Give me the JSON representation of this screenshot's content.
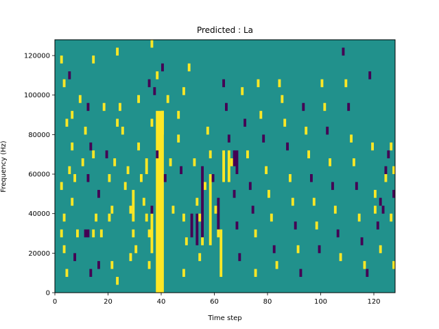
{
  "chart_data": {
    "type": "heatmap",
    "title": "Predicted : La",
    "xlabel": "Time step",
    "ylabel": "Frequency (Hz)",
    "xlim": [
      0,
      128
    ],
    "ylim": [
      0,
      128000
    ],
    "x_ticks": [
      0,
      20,
      40,
      60,
      80,
      100,
      120
    ],
    "y_ticks": [
      0,
      20000,
      40000,
      60000,
      80000,
      100000,
      120000
    ],
    "grid": false,
    "colormap": "viridis",
    "colors": {
      "background": "#21918c",
      "high": "#fde725",
      "low": "#440154"
    },
    "value_levels": {
      "low": -1,
      "mid": 0,
      "high": 1
    },
    "cell": {
      "time_steps": 1,
      "freq_bin_hz": 4000
    },
    "cells": [
      [
        2,
        116000,
        1
      ],
      [
        3,
        104000,
        1
      ],
      [
        5,
        108000,
        -1
      ],
      [
        4,
        84000,
        1
      ],
      [
        2,
        52000,
        1
      ],
      [
        3,
        36000,
        1
      ],
      [
        2,
        28000,
        1
      ],
      [
        3,
        20000,
        1
      ],
      [
        4,
        8000,
        1
      ],
      [
        6,
        88000,
        1
      ],
      [
        6,
        72000,
        1
      ],
      [
        5,
        60000,
        1
      ],
      [
        7,
        56000,
        1
      ],
      [
        6,
        44000,
        1
      ],
      [
        8,
        28000,
        1
      ],
      [
        7,
        16000,
        -1
      ],
      [
        9,
        96000,
        1
      ],
      [
        10,
        64000,
        1
      ],
      [
        11,
        80000,
        1
      ],
      [
        12,
        92000,
        -1
      ],
      [
        13,
        72000,
        -1
      ],
      [
        12,
        56000,
        -1
      ],
      [
        11,
        28000,
        -1
      ],
      [
        12,
        28000,
        -1
      ],
      [
        14,
        28000,
        1
      ],
      [
        13,
        8000,
        -1
      ],
      [
        14,
        116000,
        1
      ],
      [
        14,
        68000,
        1
      ],
      [
        15,
        36000,
        1
      ],
      [
        16,
        48000,
        -1
      ],
      [
        17,
        28000,
        1
      ],
      [
        16,
        12000,
        -1
      ],
      [
        18,
        92000,
        1
      ],
      [
        19,
        68000,
        -1
      ],
      [
        20,
        56000,
        1
      ],
      [
        20,
        36000,
        1
      ],
      [
        21,
        40000,
        1
      ],
      [
        21,
        12000,
        1
      ],
      [
        23,
        120000,
        1
      ],
      [
        23,
        4000,
        1
      ],
      [
        22,
        64000,
        1
      ],
      [
        23,
        84000,
        1
      ],
      [
        24,
        92000,
        1
      ],
      [
        25,
        80000,
        1
      ],
      [
        26,
        52000,
        1
      ],
      [
        27,
        60000,
        1
      ],
      [
        28,
        40000,
        1
      ],
      [
        29,
        28000,
        1
      ],
      [
        28,
        16000,
        1
      ],
      [
        30,
        20000,
        1
      ],
      [
        31,
        96000,
        1
      ],
      [
        31,
        72000,
        1
      ],
      [
        32,
        56000,
        1
      ],
      [
        33,
        44000,
        1
      ],
      [
        34,
        36000,
        1
      ],
      [
        35,
        28000,
        1
      ],
      [
        35,
        12000,
        1
      ],
      [
        35,
        104000,
        -1
      ],
      [
        36,
        124000,
        1
      ],
      [
        36,
        84000,
        1
      ],
      [
        36,
        40000,
        -1
      ],
      [
        37,
        100000,
        -1
      ],
      [
        38,
        108000,
        1
      ],
      [
        38,
        68000,
        -1
      ],
      [
        40,
        112000,
        -1
      ],
      [
        40,
        88000,
        1
      ],
      [
        42,
        96000,
        1
      ],
      [
        41,
        56000,
        -1
      ],
      [
        43,
        64000,
        1
      ],
      [
        44,
        40000,
        1
      ],
      [
        46,
        88000,
        1
      ],
      [
        46,
        76000,
        1
      ],
      [
        47,
        60000,
        -1
      ],
      [
        48,
        100000,
        1
      ],
      [
        48,
        36000,
        1
      ],
      [
        49,
        24000,
        1
      ],
      [
        48,
        8000,
        1
      ],
      [
        50,
        112000,
        1
      ],
      [
        52,
        64000,
        1
      ],
      [
        53,
        44000,
        1
      ],
      [
        54,
        36000,
        1
      ],
      [
        54,
        16000,
        1
      ],
      [
        55,
        24000,
        1
      ],
      [
        56,
        52000,
        1
      ],
      [
        57,
        80000,
        1
      ],
      [
        58,
        68000,
        1
      ],
      [
        59,
        56000,
        -1
      ],
      [
        60,
        40000,
        1
      ],
      [
        61,
        28000,
        1
      ],
      [
        62,
        8000,
        1
      ],
      [
        63,
        104000,
        -1
      ],
      [
        64,
        92000,
        -1
      ],
      [
        65,
        76000,
        -1
      ],
      [
        66,
        64000,
        1
      ],
      [
        67,
        48000,
        -1
      ],
      [
        68,
        32000,
        -1
      ],
      [
        69,
        16000,
        -1
      ],
      [
        70,
        100000,
        1
      ],
      [
        71,
        84000,
        -1
      ],
      [
        72,
        68000,
        1
      ],
      [
        73,
        52000,
        -1
      ],
      [
        74,
        40000,
        -1
      ],
      [
        75,
        28000,
        1
      ],
      [
        75,
        8000,
        1
      ],
      [
        76,
        104000,
        1
      ],
      [
        77,
        88000,
        1
      ],
      [
        78,
        76000,
        -1
      ],
      [
        79,
        60000,
        1
      ],
      [
        80,
        48000,
        1
      ],
      [
        81,
        36000,
        1
      ],
      [
        82,
        20000,
        -1
      ],
      [
        83,
        12000,
        1
      ],
      [
        84,
        104000,
        1
      ],
      [
        85,
        96000,
        1
      ],
      [
        86,
        84000,
        1
      ],
      [
        87,
        72000,
        -1
      ],
      [
        88,
        56000,
        1
      ],
      [
        89,
        44000,
        1
      ],
      [
        90,
        32000,
        -1
      ],
      [
        91,
        20000,
        1
      ],
      [
        92,
        8000,
        -1
      ],
      [
        93,
        92000,
        -1
      ],
      [
        94,
        80000,
        1
      ],
      [
        95,
        68000,
        1
      ],
      [
        96,
        56000,
        -1
      ],
      [
        97,
        44000,
        1
      ],
      [
        98,
        32000,
        1
      ],
      [
        99,
        20000,
        -1
      ],
      [
        100,
        104000,
        1
      ],
      [
        101,
        92000,
        1
      ],
      [
        102,
        80000,
        -1
      ],
      [
        103,
        64000,
        1
      ],
      [
        104,
        52000,
        -1
      ],
      [
        105,
        40000,
        1
      ],
      [
        106,
        28000,
        -1
      ],
      [
        107,
        16000,
        1
      ],
      [
        108,
        120000,
        -1
      ],
      [
        109,
        104000,
        1
      ],
      [
        110,
        92000,
        -1
      ],
      [
        111,
        76000,
        1
      ],
      [
        112,
        64000,
        1
      ],
      [
        113,
        52000,
        -1
      ],
      [
        114,
        36000,
        1
      ],
      [
        115,
        24000,
        -1
      ],
      [
        116,
        12000,
        1
      ],
      [
        117,
        8000,
        -1
      ],
      [
        118,
        108000,
        -1
      ],
      [
        119,
        72000,
        1
      ],
      [
        120,
        48000,
        1
      ],
      [
        121,
        32000,
        -1
      ],
      [
        122,
        20000,
        1
      ],
      [
        123,
        40000,
        -1
      ],
      [
        124,
        56000,
        1
      ],
      [
        125,
        68000,
        -1
      ],
      [
        126,
        36000,
        1
      ],
      [
        127,
        12000,
        1
      ],
      [
        127,
        48000,
        -1
      ],
      [
        127,
        60000,
        1
      ],
      [
        120,
        40000,
        1
      ],
      [
        122,
        44000,
        -1
      ],
      [
        124,
        60000,
        -1
      ],
      [
        126,
        72000,
        1
      ]
    ],
    "bands": [
      [
        38,
        40,
        0,
        88000,
        1
      ],
      [
        40,
        40,
        80000,
        88000,
        1
      ],
      [
        39,
        39,
        40000,
        72000,
        1
      ],
      [
        34,
        34,
        60000,
        64000,
        1
      ],
      [
        36,
        36,
        20000,
        36000,
        1
      ],
      [
        29,
        29,
        36000,
        48000,
        1
      ],
      [
        51,
        51,
        28000,
        36000,
        -1
      ],
      [
        53,
        53,
        24000,
        36000,
        -1
      ],
      [
        55,
        55,
        28000,
        60000,
        -1
      ],
      [
        58,
        58,
        24000,
        56000,
        1
      ],
      [
        61,
        61,
        32000,
        44000,
        -1
      ],
      [
        63,
        63,
        56000,
        68000,
        1
      ],
      [
        67,
        67,
        64000,
        68000,
        -1
      ],
      [
        65,
        65,
        56000,
        68000,
        1
      ],
      [
        62,
        62,
        12000,
        28000,
        1
      ],
      [
        68,
        68,
        60000,
        68000,
        -1
      ]
    ]
  }
}
